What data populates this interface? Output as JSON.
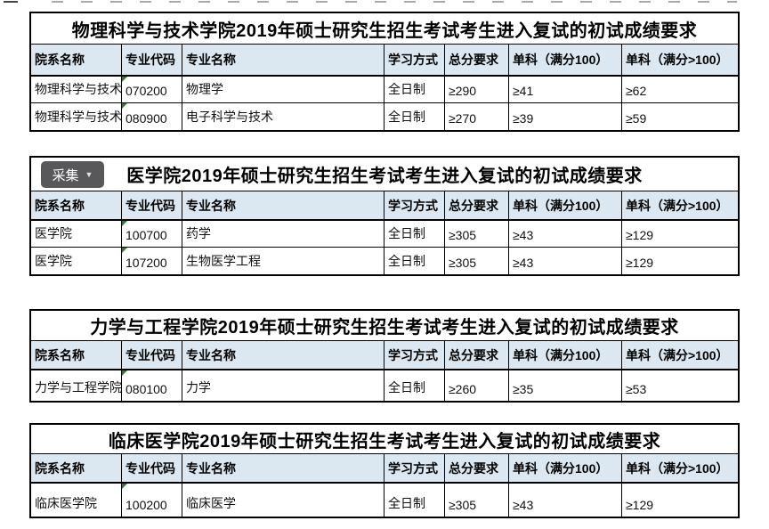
{
  "colors": {
    "header_bg": "#dbe8f1",
    "table_border": "#000000",
    "collect_button_bg": "#58585b",
    "collect_button_text": "#ffffff",
    "error_indicator_green": "#2e7d32",
    "page_bg": "#ffffff"
  },
  "collect_button": {
    "label": "采集",
    "dropdown_icon": "▼"
  },
  "columns": [
    "院系名称",
    "专业代码",
    "专业名称",
    "学习方式",
    "总分要求",
    "单科（满分100）",
    "单科（满分>100）"
  ],
  "tables": [
    {
      "title": "物理科学与技术学院2019年硕士研究生招生考试考生进入复试的初试成绩要求",
      "has_collect_button": false,
      "rows": [
        [
          "物理科学与技术",
          "070200",
          "物理学",
          "全日制",
          "≥290",
          "≥41",
          "≥62"
        ],
        [
          "物理科学与技术",
          "080900",
          "电子科学与技术",
          "全日制",
          "≥270",
          "≥39",
          "≥59"
        ]
      ]
    },
    {
      "title": "医学院2019年硕士研究生招生考试考生进入复试的初试成绩要求",
      "has_collect_button": true,
      "rows": [
        [
          "医学院",
          "100700",
          "药学",
          "全日制",
          "≥305",
          "≥43",
          "≥129"
        ],
        [
          "医学院",
          "107200",
          "生物医学工程",
          "全日制",
          "≥305",
          "≥43",
          "≥129"
        ]
      ]
    },
    {
      "title": "力学与工程学院2019年硕士研究生招生考试考生进入复试的初试成绩要求",
      "has_collect_button": false,
      "rows": [
        [
          "力学与工程学院",
          "080100",
          "力学",
          "全日制",
          "≥260",
          "≥35",
          "≥53"
        ]
      ]
    },
    {
      "title": "临床医学院2019年硕士研究生招生考试考生进入复试的初试成绩要求",
      "has_collect_button": false,
      "rows": [
        [
          "临床医学院",
          "100200",
          "临床医学",
          "全日制",
          "≥305",
          "≥43",
          "≥129"
        ]
      ]
    }
  ]
}
